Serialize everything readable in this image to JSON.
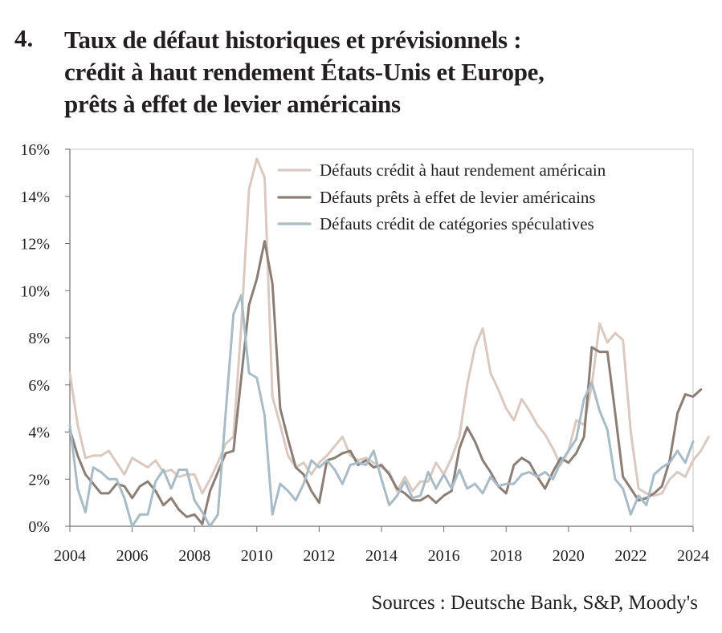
{
  "header": {
    "number": "4.",
    "title_lines": [
      "Taux de défaut historiques et prévisionnels :",
      "crédit à haut rendement États-Unis et Europe,",
      "prêts à effet de levier américains"
    ]
  },
  "source": "Sources : Deutsche Bank, S&P, Moody's",
  "chart_data": {
    "type": "line",
    "title": "Taux de défaut historiques et prévisionnels : crédit à haut rendement États-Unis et Europe, prêts à effet de levier américains",
    "xlabel": "",
    "ylabel": "",
    "xlim": [
      2004,
      2024
    ],
    "ylim": [
      0,
      16
    ],
    "x_ticks": [
      "2004",
      "2006",
      "2008",
      "2010",
      "2012",
      "2014",
      "2016",
      "2018",
      "2020",
      "2022",
      "2024"
    ],
    "y_ticks": [
      "0%",
      "2%",
      "4%",
      "6%",
      "8%",
      "10%",
      "12%",
      "14%",
      "16%"
    ],
    "grid": false,
    "legend_position": "top-right",
    "series": [
      {
        "name": "Défauts crédit à haut rendement américain",
        "color": "#d9c9c1",
        "points": [
          [
            2004,
            6.5
          ],
          [
            2004.25,
            4.3
          ],
          [
            2004.5,
            2.9
          ],
          [
            2004.75,
            3.0
          ],
          [
            2005,
            3.0
          ],
          [
            2005.25,
            3.2
          ],
          [
            2005.5,
            2.7
          ],
          [
            2005.75,
            2.2
          ],
          [
            2006,
            2.9
          ],
          [
            2006.25,
            2.7
          ],
          [
            2006.5,
            2.5
          ],
          [
            2006.75,
            2.8
          ],
          [
            2007,
            2.3
          ],
          [
            2007.25,
            2.4
          ],
          [
            2007.5,
            2.1
          ],
          [
            2007.75,
            2.2
          ],
          [
            2008,
            2.2
          ],
          [
            2008.25,
            1.4
          ],
          [
            2008.5,
            2.0
          ],
          [
            2008.75,
            2.7
          ],
          [
            2009,
            3.5
          ],
          [
            2009.25,
            3.8
          ],
          [
            2009.5,
            8.5
          ],
          [
            2009.75,
            14.3
          ],
          [
            2010,
            15.6
          ],
          [
            2010.25,
            14.8
          ],
          [
            2010.5,
            5.5
          ],
          [
            2010.75,
            4.3
          ],
          [
            2011,
            3.0
          ],
          [
            2011.25,
            2.5
          ],
          [
            2011.5,
            2.7
          ],
          [
            2011.75,
            2.2
          ],
          [
            2012,
            2.7
          ],
          [
            2012.25,
            3.0
          ],
          [
            2012.5,
            3.4
          ],
          [
            2012.75,
            3.8
          ],
          [
            2013,
            3.0
          ],
          [
            2013.25,
            2.8
          ],
          [
            2013.5,
            2.9
          ],
          [
            2013.75,
            2.7
          ],
          [
            2014,
            2.5
          ],
          [
            2014.25,
            2.3
          ],
          [
            2014.5,
            1.5
          ],
          [
            2014.75,
            2.1
          ],
          [
            2015,
            1.5
          ],
          [
            2015.25,
            1.9
          ],
          [
            2015.5,
            1.9
          ],
          [
            2015.75,
            2.7
          ],
          [
            2016,
            2.2
          ],
          [
            2016.25,
            2.9
          ],
          [
            2016.5,
            3.8
          ],
          [
            2016.75,
            6.0
          ],
          [
            2017,
            7.6
          ],
          [
            2017.25,
            8.4
          ],
          [
            2017.5,
            6.5
          ],
          [
            2017.75,
            5.8
          ],
          [
            2018,
            5.0
          ],
          [
            2018.25,
            4.5
          ],
          [
            2018.5,
            5.4
          ],
          [
            2018.75,
            4.9
          ],
          [
            2019,
            4.3
          ],
          [
            2019.25,
            3.9
          ],
          [
            2019.5,
            3.3
          ],
          [
            2019.75,
            2.6
          ],
          [
            2020,
            3.2
          ],
          [
            2020.25,
            4.5
          ],
          [
            2020.5,
            4.3
          ],
          [
            2020.75,
            6.0
          ],
          [
            2021,
            8.6
          ],
          [
            2021.25,
            7.8
          ],
          [
            2021.5,
            8.2
          ],
          [
            2021.75,
            7.9
          ],
          [
            2022,
            4.0
          ],
          [
            2022.25,
            1.6
          ],
          [
            2022.5,
            1.4
          ],
          [
            2022.75,
            1.3
          ],
          [
            2023,
            1.4
          ],
          [
            2023.25,
            2.0
          ],
          [
            2023.5,
            2.3
          ],
          [
            2023.75,
            2.1
          ],
          [
            2024,
            2.8
          ],
          [
            2024.25,
            3.2
          ],
          [
            2024.5,
            3.8
          ]
        ]
      },
      {
        "name": "Défauts prêts à effet de levier américains",
        "color": "#8b7e76",
        "points": [
          [
            2004,
            4.1
          ],
          [
            2004.25,
            3.0
          ],
          [
            2004.5,
            2.2
          ],
          [
            2004.75,
            1.8
          ],
          [
            2005,
            1.4
          ],
          [
            2005.25,
            1.4
          ],
          [
            2005.5,
            1.8
          ],
          [
            2005.75,
            1.7
          ],
          [
            2006,
            1.2
          ],
          [
            2006.25,
            1.7
          ],
          [
            2006.5,
            1.9
          ],
          [
            2006.75,
            1.5
          ],
          [
            2007,
            0.9
          ],
          [
            2007.25,
            1.2
          ],
          [
            2007.5,
            0.7
          ],
          [
            2007.75,
            0.4
          ],
          [
            2008,
            0.5
          ],
          [
            2008.25,
            0.1
          ],
          [
            2008.5,
            1.5
          ],
          [
            2008.75,
            2.3
          ],
          [
            2009,
            3.1
          ],
          [
            2009.25,
            3.2
          ],
          [
            2009.5,
            6.3
          ],
          [
            2009.75,
            9.4
          ],
          [
            2010,
            10.5
          ],
          [
            2010.25,
            12.1
          ],
          [
            2010.5,
            10.3
          ],
          [
            2010.75,
            5.0
          ],
          [
            2011,
            3.7
          ],
          [
            2011.25,
            2.5
          ],
          [
            2011.5,
            2.2
          ],
          [
            2011.75,
            1.5
          ],
          [
            2012,
            1.0
          ],
          [
            2012.25,
            2.8
          ],
          [
            2012.5,
            2.9
          ],
          [
            2012.75,
            3.1
          ],
          [
            2013,
            3.2
          ],
          [
            2013.25,
            2.6
          ],
          [
            2013.5,
            2.8
          ],
          [
            2013.75,
            2.5
          ],
          [
            2014,
            2.6
          ],
          [
            2014.25,
            2.2
          ],
          [
            2014.5,
            1.6
          ],
          [
            2014.75,
            1.4
          ],
          [
            2015,
            1.1
          ],
          [
            2015.25,
            1.1
          ],
          [
            2015.5,
            1.3
          ],
          [
            2015.75,
            1.0
          ],
          [
            2016,
            1.3
          ],
          [
            2016.25,
            1.5
          ],
          [
            2016.5,
            3.3
          ],
          [
            2016.75,
            4.2
          ],
          [
            2017,
            3.6
          ],
          [
            2017.25,
            2.8
          ],
          [
            2017.5,
            2.3
          ],
          [
            2017.75,
            1.7
          ],
          [
            2018,
            1.4
          ],
          [
            2018.25,
            2.6
          ],
          [
            2018.5,
            2.9
          ],
          [
            2018.75,
            2.7
          ],
          [
            2019,
            2.1
          ],
          [
            2019.25,
            1.6
          ],
          [
            2019.5,
            2.3
          ],
          [
            2019.75,
            2.9
          ],
          [
            2020,
            2.7
          ],
          [
            2020.25,
            3.1
          ],
          [
            2020.5,
            3.8
          ],
          [
            2020.75,
            7.6
          ],
          [
            2021,
            7.4
          ],
          [
            2021.25,
            7.4
          ],
          [
            2021.5,
            4.8
          ],
          [
            2021.75,
            2.1
          ],
          [
            2022,
            1.6
          ],
          [
            2022.25,
            1.1
          ],
          [
            2022.5,
            1.2
          ],
          [
            2022.75,
            1.4
          ],
          [
            2023,
            1.7
          ],
          [
            2023.25,
            2.8
          ],
          [
            2023.5,
            4.8
          ],
          [
            2023.75,
            5.6
          ],
          [
            2024,
            5.5
          ],
          [
            2024.25,
            5.8
          ]
        ]
      },
      {
        "name": "Défauts crédit de catégories spéculatives",
        "color": "#a9bcc6",
        "points": [
          [
            2004,
            4.3
          ],
          [
            2004.25,
            1.6
          ],
          [
            2004.5,
            0.6
          ],
          [
            2004.75,
            2.5
          ],
          [
            2005,
            2.3
          ],
          [
            2005.25,
            2.0
          ],
          [
            2005.5,
            2.0
          ],
          [
            2005.75,
            1.2
          ],
          [
            2006,
            0.0
          ],
          [
            2006.25,
            0.5
          ],
          [
            2006.5,
            0.5
          ],
          [
            2006.75,
            1.9
          ],
          [
            2007,
            2.4
          ],
          [
            2007.25,
            1.6
          ],
          [
            2007.5,
            2.4
          ],
          [
            2007.75,
            2.4
          ],
          [
            2008,
            1.1
          ],
          [
            2008.25,
            0.6
          ],
          [
            2008.5,
            0.0
          ],
          [
            2008.75,
            0.5
          ],
          [
            2009,
            4.8
          ],
          [
            2009.25,
            9.0
          ],
          [
            2009.5,
            9.8
          ],
          [
            2009.75,
            6.5
          ],
          [
            2010,
            6.3
          ],
          [
            2010.25,
            4.7
          ],
          [
            2010.5,
            0.5
          ],
          [
            2010.75,
            1.8
          ],
          [
            2011,
            1.5
          ],
          [
            2011.25,
            1.1
          ],
          [
            2011.5,
            1.8
          ],
          [
            2011.75,
            2.8
          ],
          [
            2012,
            2.5
          ],
          [
            2012.25,
            2.8
          ],
          [
            2012.5,
            2.4
          ],
          [
            2012.75,
            1.8
          ],
          [
            2013,
            2.6
          ],
          [
            2013.25,
            2.7
          ],
          [
            2013.5,
            2.6
          ],
          [
            2013.75,
            3.2
          ],
          [
            2014,
            2.0
          ],
          [
            2014.25,
            0.9
          ],
          [
            2014.5,
            1.3
          ],
          [
            2014.75,
            1.9
          ],
          [
            2015,
            1.2
          ],
          [
            2015.25,
            1.3
          ],
          [
            2015.5,
            2.3
          ],
          [
            2015.75,
            1.6
          ],
          [
            2016,
            2.2
          ],
          [
            2016.25,
            1.6
          ],
          [
            2016.5,
            2.4
          ],
          [
            2016.75,
            1.6
          ],
          [
            2017,
            1.8
          ],
          [
            2017.25,
            1.4
          ],
          [
            2017.5,
            2.1
          ],
          [
            2017.75,
            1.7
          ],
          [
            2018,
            1.8
          ],
          [
            2018.25,
            1.8
          ],
          [
            2018.5,
            2.2
          ],
          [
            2018.75,
            2.3
          ],
          [
            2019,
            2.1
          ],
          [
            2019.25,
            2.3
          ],
          [
            2019.5,
            2.0
          ],
          [
            2019.75,
            2.7
          ],
          [
            2020,
            3.2
          ],
          [
            2020.25,
            3.7
          ],
          [
            2020.5,
            5.4
          ],
          [
            2020.75,
            6.1
          ],
          [
            2021,
            4.9
          ],
          [
            2021.25,
            4.1
          ],
          [
            2021.5,
            2.0
          ],
          [
            2021.75,
            1.6
          ],
          [
            2022,
            0.5
          ],
          [
            2022.25,
            1.3
          ],
          [
            2022.5,
            0.9
          ],
          [
            2022.75,
            2.2
          ],
          [
            2023,
            2.5
          ],
          [
            2023.25,
            2.7
          ],
          [
            2023.5,
            3.2
          ],
          [
            2023.75,
            2.7
          ],
          [
            2024,
            3.6
          ]
        ]
      }
    ]
  }
}
